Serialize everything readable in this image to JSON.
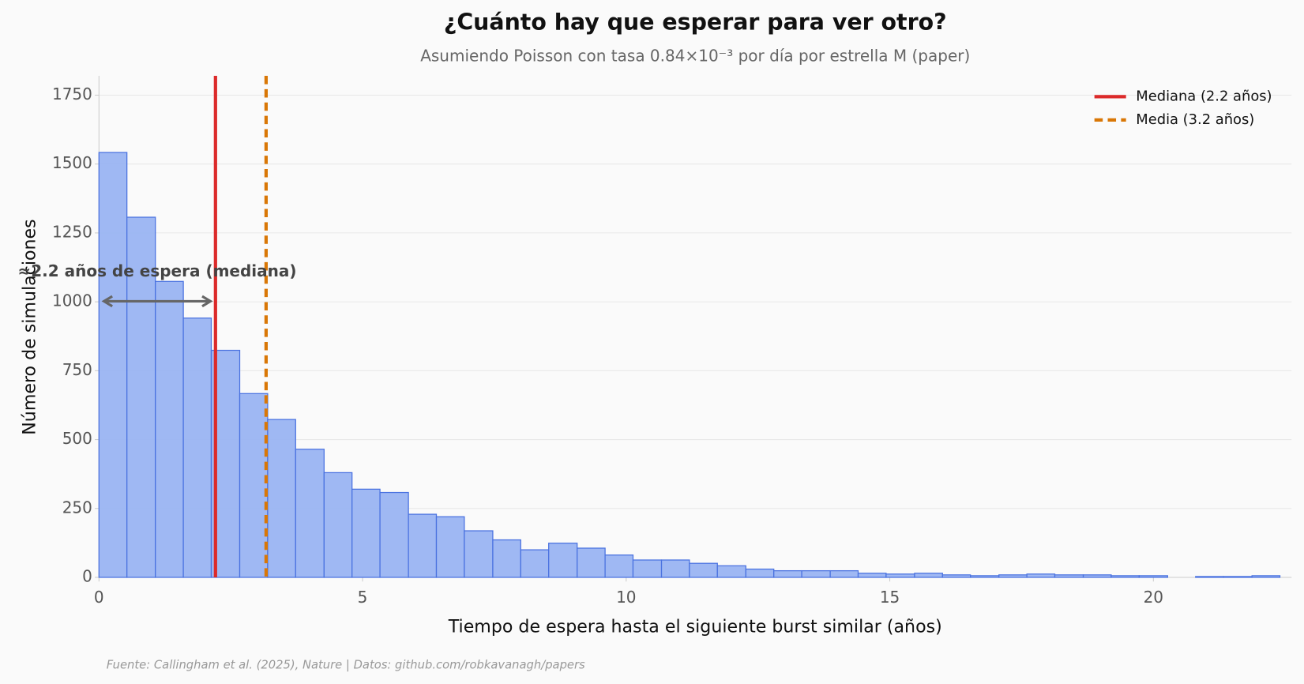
{
  "chart_data": {
    "type": "histogram",
    "title": "¿Cuánto hay que esperar para ver otro?",
    "subtitle": "Asumiendo Poisson con tasa 0.84×10⁻³ por día por estrella M (paper)",
    "x_label": "Tiempo de espera hasta el siguiente burst similar (años)",
    "y_label": "Número de simulaciones",
    "annotation": "≈2.2 años de espera (mediana)",
    "source": "Fuente: Callingham et al. (2025), Nature | Datos: github.com/robkavanagh/papers",
    "bins": [
      0,
      0.53,
      1.07,
      1.6,
      2.13,
      2.67,
      3.2,
      3.73,
      4.27,
      4.8,
      5.33,
      5.87,
      6.4,
      6.93,
      7.47,
      8.0,
      8.53,
      9.07,
      9.6,
      10.13,
      10.67,
      11.2,
      11.73,
      12.27,
      12.8,
      13.33,
      13.87,
      14.4,
      14.93,
      15.47,
      16.0,
      16.53,
      17.07,
      17.6,
      18.13,
      18.67,
      19.2,
      19.73,
      20.27,
      20.8,
      21.33,
      21.87,
      22.4
    ],
    "values": [
      1542,
      1307,
      1074,
      941,
      824,
      667,
      573,
      465,
      380,
      320,
      308,
      229,
      220,
      169,
      136,
      100,
      124,
      106,
      81,
      63,
      63,
      51,
      42,
      30,
      24,
      24,
      24,
      15,
      12,
      15,
      9,
      6,
      9,
      12,
      9,
      9,
      6,
      6,
      0,
      3,
      3,
      6
    ],
    "color": "#9ab4f2",
    "edge_color": "#4a72e0",
    "vlines": [
      {
        "name": "Mediana (2.2 años)",
        "value": 2.21,
        "color": "#dc2a2a",
        "style": "solid"
      },
      {
        "name": "Media (3.2 años)",
        "value": 3.17,
        "color": "#d97706",
        "style": "dashed"
      }
    ],
    "xlim": [
      0,
      22.62
    ],
    "ylim": [
      0,
      1820
    ],
    "xticks": [
      0,
      5,
      10,
      15,
      20
    ],
    "yticks": [
      0,
      250,
      500,
      750,
      1000,
      1250,
      1500,
      1750
    ],
    "grid": true,
    "legend": "upper right"
  }
}
